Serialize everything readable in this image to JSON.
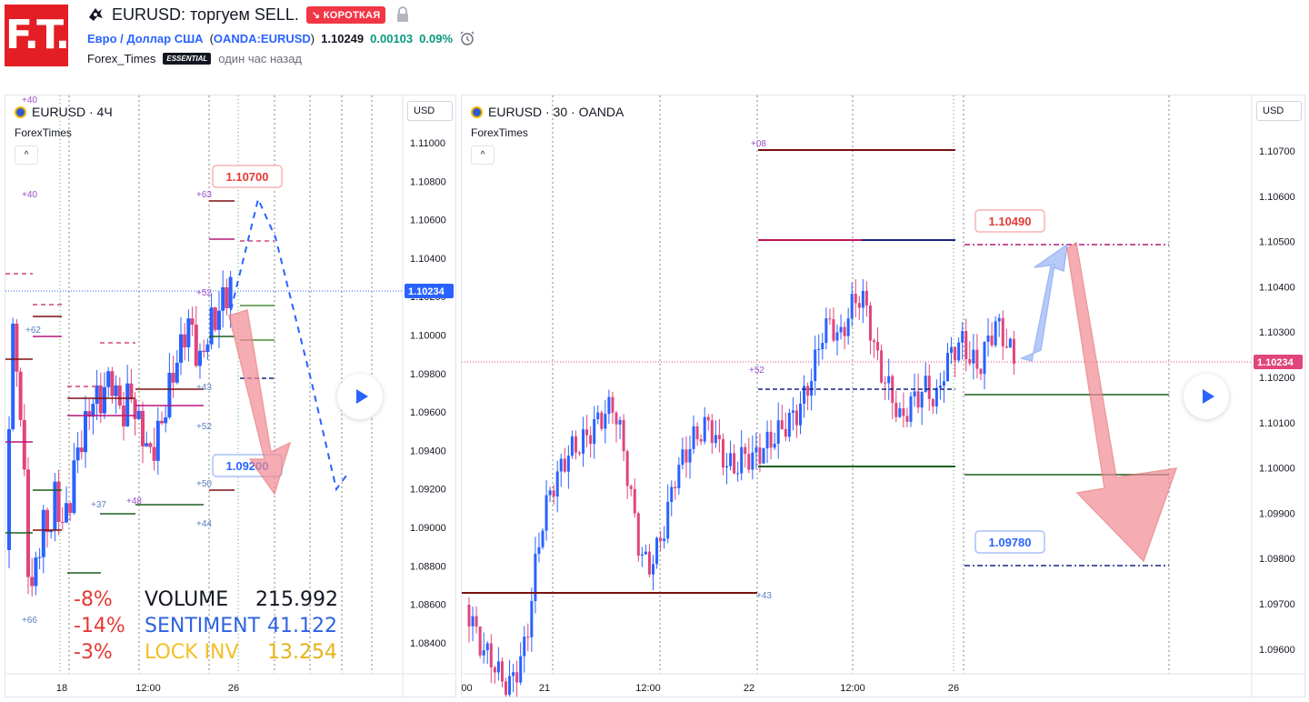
{
  "header": {
    "logo": "F.T.",
    "title": "EURUSD: торгуем SELL.",
    "badge": "↘ КОРОТКАЯ",
    "symbol_name": "Евро / Доллар США",
    "symbol_code_open": "(",
    "symbol_code": "OANDA:EURUSD",
    "symbol_code_close": ")",
    "price": "1.10249",
    "change": "0.00103",
    "change_pct": "0.09%",
    "author": "Forex_Times",
    "author_badge": "ESSENTIAL",
    "time_ago": "один час назад"
  },
  "left_chart": {
    "title": "EURUSD · 4Ч",
    "indicator": "ForexTimes",
    "currency": "USD",
    "collapse": "^",
    "price_labels": [
      "1.11000",
      "1.10800",
      "1.10600",
      "1.10400",
      "1.10200",
      "1.10000",
      "1.09800",
      "1.09600",
      "1.09400",
      "1.09200",
      "1.09000",
      "1.08800",
      "1.08600",
      "1.08400"
    ],
    "current_price": "1.10234",
    "time_labels": [
      "18",
      "12:00",
      "26"
    ],
    "target_high": "1.10700",
    "target_low": "1.09200",
    "level_marks": [
      "+40",
      "+40",
      "+63",
      "+62",
      "+52",
      "+43",
      "+52",
      "+50",
      "+37",
      "+48",
      "+44",
      "+66"
    ],
    "stats": [
      {
        "pct": "-8%",
        "label": "VOLUME",
        "value": "215.992",
        "label_color": "#131722",
        "value_color": "#131722"
      },
      {
        "pct": "-14%",
        "label": "SENTIMENT",
        "value": "41.122",
        "label_color": "#2f62e0",
        "value_color": "#2f62e0"
      },
      {
        "pct": "-3%",
        "label": "LOCK INV",
        "value": "13.254",
        "label_color": "#f2c027",
        "value_color": "#e5b318"
      }
    ]
  },
  "right_chart": {
    "title": "EURUSD · 30 · OANDA",
    "indicator": "ForexTimes",
    "currency": "USD",
    "collapse": "^",
    "price_labels": [
      "1.10700",
      "1.10600",
      "1.10500",
      "1.10400",
      "1.10300",
      "1.10200",
      "1.10100",
      "1.10000",
      "1.09900",
      "1.09800",
      "1.09700",
      "1.09600"
    ],
    "current_price": "1.10234",
    "time_labels": [
      ":00",
      "21",
      "12:00",
      "22",
      "12:00",
      "26"
    ],
    "target_high": "1.10490",
    "target_low": "1.09780",
    "level_marks": [
      "+08",
      "+52",
      "+43"
    ]
  },
  "colors": {
    "up": "#2962ff",
    "down": "#e0457b",
    "accent": "#2962ff",
    "badge": "#f23645",
    "change": "#089981"
  },
  "icons": [
    "ninja-icon",
    "lock-icon",
    "alarm-icon",
    "play-icon",
    "chevron-up-icon",
    "currency-flag-icon"
  ]
}
